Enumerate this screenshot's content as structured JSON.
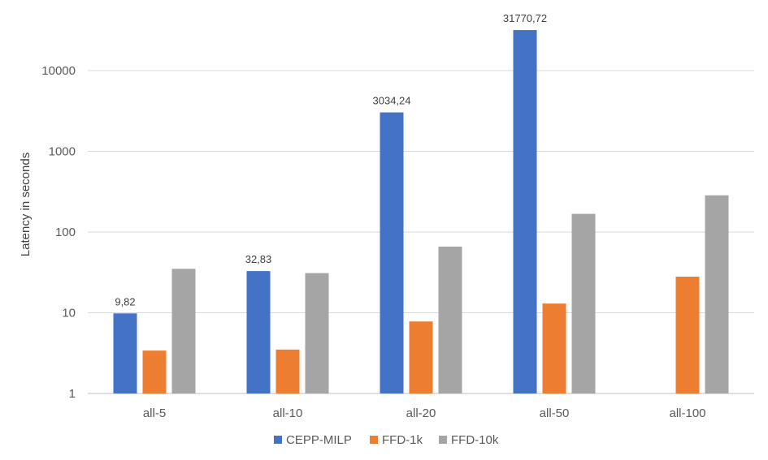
{
  "chart_data": {
    "type": "bar",
    "title": "",
    "xlabel": "",
    "ylabel": "Latency in seconds",
    "yscale": "log",
    "ylim": [
      1,
      50000
    ],
    "yticks": [
      "1",
      "10",
      "100",
      "1000",
      "10000"
    ],
    "grid": true,
    "legend_position": "bottom",
    "categories": [
      "all-5",
      "all-10",
      "all-20",
      "all-50",
      "all-100"
    ],
    "series": [
      {
        "name": "CEPP-MILP",
        "color": "#4472c4",
        "values": [
          9.82,
          32.83,
          3034.24,
          31770.72,
          null
        ],
        "labels": [
          "9,82",
          "32,83",
          "3034,24",
          "31770,72",
          ""
        ]
      },
      {
        "name": "FFD-1k",
        "color": "#ed7d31",
        "values": [
          3.4,
          3.5,
          7.8,
          13,
          28
        ],
        "labels": [
          "",
          "",
          "",
          "",
          ""
        ]
      },
      {
        "name": "FFD-10k",
        "color": "#a5a5a5",
        "values": [
          35,
          31,
          66,
          168,
          285
        ],
        "labels": [
          "",
          "",
          "",
          "",
          ""
        ]
      }
    ]
  }
}
